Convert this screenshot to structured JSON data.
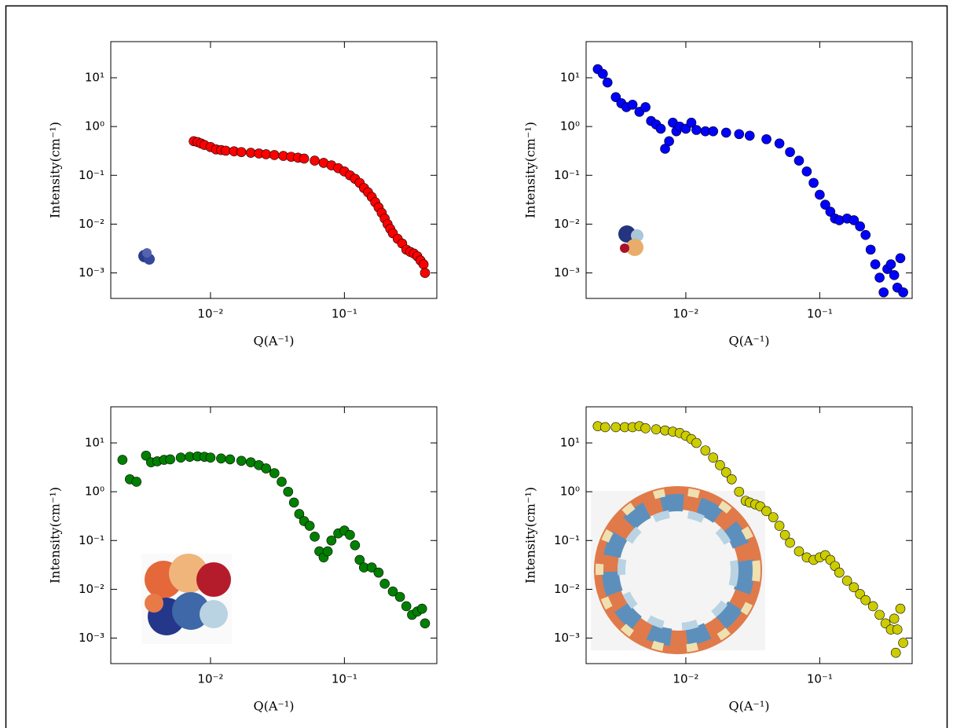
{
  "chart_data": [
    {
      "type": "scatter",
      "xlabel": "Q(A⁻¹)",
      "ylabel": "Intensity(cm⁻¹)",
      "xscale": "log",
      "yscale": "log",
      "color": "#ff0000",
      "xlim": [
        0.0018,
        0.49
      ],
      "ylim": [
        0.0003,
        55
      ],
      "xticks": [
        {
          "value": 0.01,
          "label": "10⁻²"
        },
        {
          "value": 0.1,
          "label": "10⁻¹"
        }
      ],
      "yticks": [
        {
          "value": 0.001,
          "label": "10⁻³"
        },
        {
          "value": 0.01,
          "label": "10⁻²"
        },
        {
          "value": 0.1,
          "label": "10⁻¹"
        },
        {
          "value": 1,
          "label": "10⁰"
        },
        {
          "value": 10,
          "label": "10¹"
        }
      ],
      "x": [
        0.0075,
        0.008,
        0.0085,
        0.009,
        0.01,
        0.011,
        0.012,
        0.013,
        0.015,
        0.017,
        0.02,
        0.023,
        0.026,
        0.03,
        0.035,
        0.04,
        0.045,
        0.05,
        0.06,
        0.07,
        0.08,
        0.09,
        0.1,
        0.11,
        0.12,
        0.13,
        0.14,
        0.15,
        0.16,
        0.17,
        0.18,
        0.19,
        0.2,
        0.21,
        0.22,
        0.23,
        0.25,
        0.27,
        0.29,
        0.31,
        0.33,
        0.35,
        0.37,
        0.39,
        0.4
      ],
      "values": [
        0.5,
        0.48,
        0.45,
        0.42,
        0.38,
        0.34,
        0.33,
        0.32,
        0.31,
        0.3,
        0.29,
        0.28,
        0.27,
        0.26,
        0.25,
        0.24,
        0.23,
        0.22,
        0.2,
        0.18,
        0.16,
        0.14,
        0.12,
        0.1,
        0.085,
        0.07,
        0.055,
        0.045,
        0.036,
        0.028,
        0.022,
        0.017,
        0.013,
        0.01,
        0.008,
        0.0065,
        0.005,
        0.004,
        0.003,
        0.0027,
        0.0025,
        0.0022,
        0.0018,
        0.0015,
        0.001
      ]
    },
    {
      "type": "scatter",
      "xlabel": "Q(A⁻¹)",
      "ylabel": "Intensity(cm⁻¹)",
      "xscale": "log",
      "yscale": "log",
      "color": "#0000ff",
      "xlim": [
        0.0018,
        0.49
      ],
      "ylim": [
        0.0003,
        55
      ],
      "xticks": [
        {
          "value": 0.01,
          "label": "10⁻²"
        },
        {
          "value": 0.1,
          "label": "10⁻¹"
        }
      ],
      "yticks": [
        {
          "value": 0.001,
          "label": "10⁻³"
        },
        {
          "value": 0.01,
          "label": "10⁻²"
        },
        {
          "value": 0.1,
          "label": "10⁻¹"
        },
        {
          "value": 1,
          "label": "10⁰"
        },
        {
          "value": 10,
          "label": "10¹"
        }
      ],
      "x": [
        0.0022,
        0.0024,
        0.0026,
        0.003,
        0.0033,
        0.0036,
        0.004,
        0.0045,
        0.005,
        0.0055,
        0.006,
        0.0065,
        0.007,
        0.0075,
        0.008,
        0.0085,
        0.009,
        0.01,
        0.011,
        0.012,
        0.014,
        0.016,
        0.02,
        0.025,
        0.03,
        0.04,
        0.05,
        0.06,
        0.07,
        0.08,
        0.09,
        0.1,
        0.11,
        0.12,
        0.13,
        0.14,
        0.16,
        0.18,
        0.2,
        0.22,
        0.24,
        0.26,
        0.28,
        0.3,
        0.32,
        0.34,
        0.36,
        0.38,
        0.4,
        0.42
      ],
      "values": [
        15,
        12,
        8,
        4,
        3,
        2.5,
        2.8,
        2,
        2.5,
        1.3,
        1.1,
        0.9,
        0.35,
        0.5,
        1.2,
        0.8,
        1.0,
        0.9,
        1.2,
        0.85,
        0.8,
        0.8,
        0.75,
        0.7,
        0.65,
        0.55,
        0.45,
        0.3,
        0.2,
        0.12,
        0.07,
        0.04,
        0.025,
        0.018,
        0.013,
        0.012,
        0.013,
        0.012,
        0.009,
        0.006,
        0.003,
        0.0015,
        0.0008,
        0.0004,
        0.0012,
        0.0015,
        0.0009,
        0.0005,
        0.002,
        0.0004
      ]
    },
    {
      "type": "scatter",
      "xlabel": "Q(A⁻¹)",
      "ylabel": "Intensity(cm⁻¹)",
      "xscale": "log",
      "yscale": "log",
      "color": "#008000",
      "xlim": [
        0.0018,
        0.49
      ],
      "ylim": [
        0.0003,
        55
      ],
      "xticks": [
        {
          "value": 0.01,
          "label": "10⁻²"
        },
        {
          "value": 0.1,
          "label": "10⁻¹"
        }
      ],
      "yticks": [
        {
          "value": 0.001,
          "label": "10⁻³"
        },
        {
          "value": 0.01,
          "label": "10⁻²"
        },
        {
          "value": 0.1,
          "label": "10⁻¹"
        },
        {
          "value": 1,
          "label": "10⁰"
        },
        {
          "value": 10,
          "label": "10¹"
        }
      ],
      "x": [
        0.0022,
        0.0025,
        0.0028,
        0.0033,
        0.0036,
        0.004,
        0.0045,
        0.005,
        0.006,
        0.007,
        0.008,
        0.009,
        0.01,
        0.012,
        0.014,
        0.017,
        0.02,
        0.023,
        0.026,
        0.03,
        0.034,
        0.038,
        0.042,
        0.046,
        0.05,
        0.055,
        0.06,
        0.065,
        0.07,
        0.075,
        0.08,
        0.09,
        0.1,
        0.11,
        0.12,
        0.13,
        0.14,
        0.16,
        0.18,
        0.2,
        0.23,
        0.26,
        0.29,
        0.32,
        0.35,
        0.38,
        0.4
      ],
      "values": [
        4.5,
        1.8,
        1.6,
        5.5,
        4,
        4.2,
        4.5,
        4.6,
        5,
        5.2,
        5.3,
        5.2,
        5,
        4.8,
        4.6,
        4.3,
        4,
        3.5,
        3,
        2.4,
        1.6,
        1.0,
        0.6,
        0.35,
        0.25,
        0.2,
        0.12,
        0.06,
        0.045,
        0.06,
        0.1,
        0.14,
        0.16,
        0.13,
        0.08,
        0.04,
        0.028,
        0.028,
        0.022,
        0.013,
        0.009,
        0.007,
        0.0045,
        0.003,
        0.0035,
        0.004,
        0.002
      ]
    },
    {
      "type": "scatter",
      "xlabel": "Q(A⁻¹)",
      "ylabel": "Intensity(cm⁻¹)",
      "xscale": "log",
      "yscale": "log",
      "color": "#cccc00",
      "xlim": [
        0.0018,
        0.49
      ],
      "ylim": [
        0.0003,
        55
      ],
      "xticks": [
        {
          "value": 0.01,
          "label": "10⁻²"
        },
        {
          "value": 0.1,
          "label": "10⁻¹"
        }
      ],
      "yticks": [
        {
          "value": 0.001,
          "label": "10⁻³"
        },
        {
          "value": 0.01,
          "label": "10⁻²"
        },
        {
          "value": 0.1,
          "label": "10⁻¹"
        },
        {
          "value": 1,
          "label": "10⁰"
        },
        {
          "value": 10,
          "label": "10¹"
        }
      ],
      "x": [
        0.0022,
        0.0025,
        0.003,
        0.0035,
        0.004,
        0.0045,
        0.005,
        0.006,
        0.007,
        0.008,
        0.009,
        0.01,
        0.011,
        0.012,
        0.014,
        0.016,
        0.018,
        0.02,
        0.022,
        0.025,
        0.028,
        0.03,
        0.033,
        0.036,
        0.04,
        0.045,
        0.05,
        0.055,
        0.06,
        0.07,
        0.08,
        0.09,
        0.1,
        0.11,
        0.12,
        0.13,
        0.14,
        0.16,
        0.18,
        0.2,
        0.22,
        0.25,
        0.28,
        0.31,
        0.34,
        0.36,
        0.37,
        0.38,
        0.4,
        0.42
      ],
      "values": [
        22,
        21,
        21,
        21,
        21,
        22,
        20,
        19,
        18,
        17,
        16,
        14,
        12,
        10,
        7,
        5,
        3.5,
        2.5,
        1.8,
        1.0,
        0.65,
        0.6,
        0.55,
        0.5,
        0.4,
        0.3,
        0.2,
        0.13,
        0.09,
        0.06,
        0.045,
        0.04,
        0.045,
        0.05,
        0.04,
        0.03,
        0.022,
        0.015,
        0.011,
        0.008,
        0.006,
        0.0045,
        0.003,
        0.002,
        0.0015,
        0.0025,
        0.0005,
        0.0015,
        0.004,
        0.0008
      ]
    }
  ]
}
